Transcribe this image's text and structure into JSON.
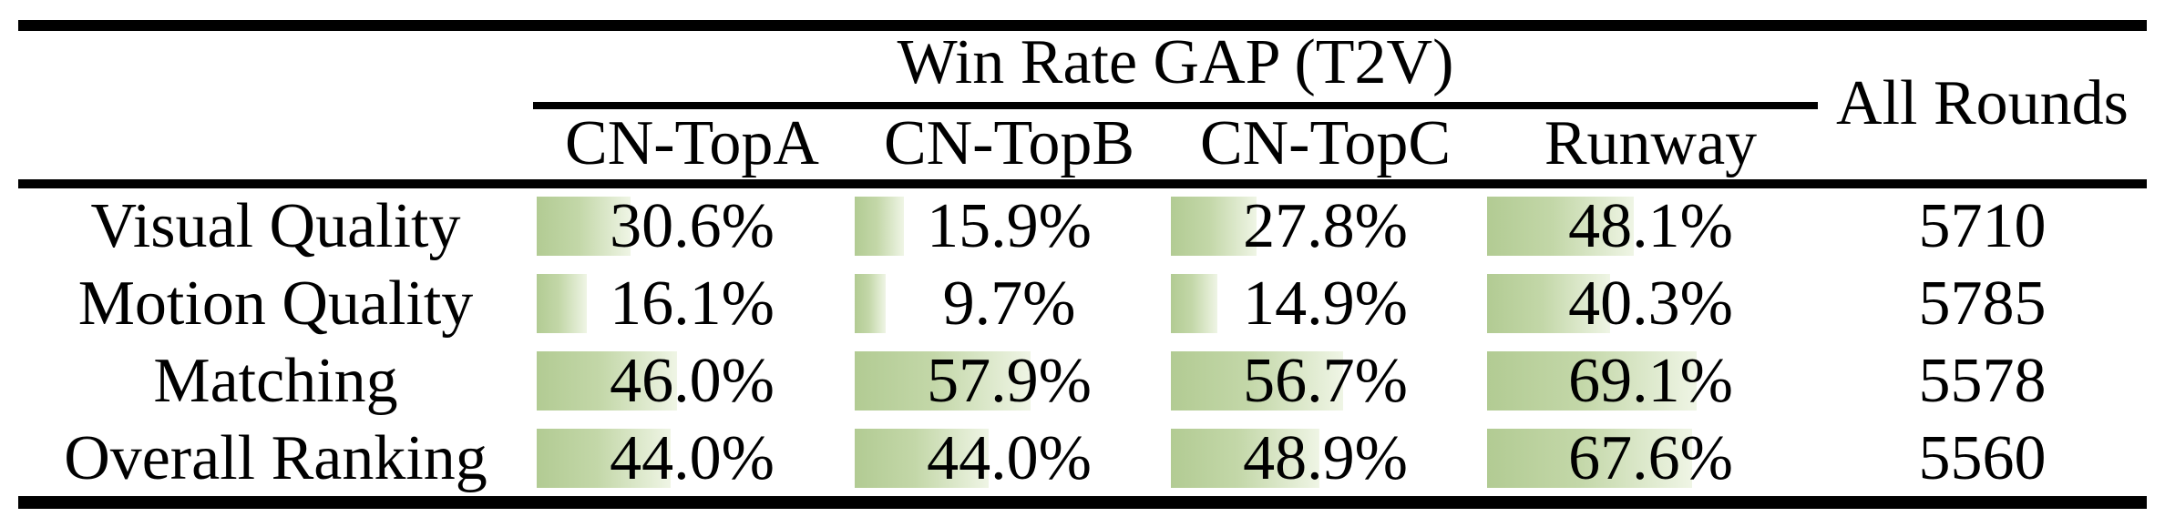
{
  "table": {
    "group_title": "Win Rate GAP (T2V)",
    "all_rounds_header": "All Rounds",
    "columns": [
      "CN-TopA",
      "CN-TopB",
      "CN-TopC",
      "Runway"
    ],
    "rows": [
      {
        "label": "Visual Quality",
        "values": [
          "30.6%",
          "15.9%",
          "27.8%",
          "48.1%"
        ],
        "pct": [
          30.6,
          15.9,
          27.8,
          48.1
        ],
        "all_rounds": "5710"
      },
      {
        "label": "Motion Quality",
        "values": [
          "16.1%",
          "9.7%",
          "14.9%",
          "40.3%"
        ],
        "pct": [
          16.1,
          9.7,
          14.9,
          40.3
        ],
        "all_rounds": "5785"
      },
      {
        "label": "Matching",
        "values": [
          "46.0%",
          "57.9%",
          "56.7%",
          "69.1%"
        ],
        "pct": [
          46.0,
          57.9,
          56.7,
          69.1
        ],
        "all_rounds": "5578"
      },
      {
        "label": "Overall Ranking",
        "values": [
          "44.0%",
          "44.0%",
          "48.9%",
          "67.6%"
        ],
        "pct": [
          44.0,
          44.0,
          48.9,
          67.6
        ],
        "all_rounds": "5560"
      }
    ],
    "colors": {
      "bar_gradient_start": "#b2cb93",
      "bar_gradient_end": "#eff5e5",
      "rule": "#000000",
      "text": "#000000"
    }
  },
  "chart_data": {
    "type": "table",
    "title": "Win Rate GAP (T2V)",
    "columns": [
      "",
      "CN-TopA",
      "CN-TopB",
      "CN-TopC",
      "Runway",
      "All Rounds"
    ],
    "rows": [
      [
        "Visual Quality",
        30.6,
        15.9,
        27.8,
        48.1,
        5710
      ],
      [
        "Motion Quality",
        16.1,
        9.7,
        14.9,
        40.3,
        5785
      ],
      [
        "Matching",
        46.0,
        57.9,
        56.7,
        69.1,
        5578
      ],
      [
        "Overall Ranking",
        44.0,
        44.0,
        48.9,
        67.6,
        5560
      ]
    ],
    "notes": "Percent cells have green gradient data bars, width proportional to value (approx 3.3 px per percent point); bars fade from sage green to near-white left to right."
  }
}
